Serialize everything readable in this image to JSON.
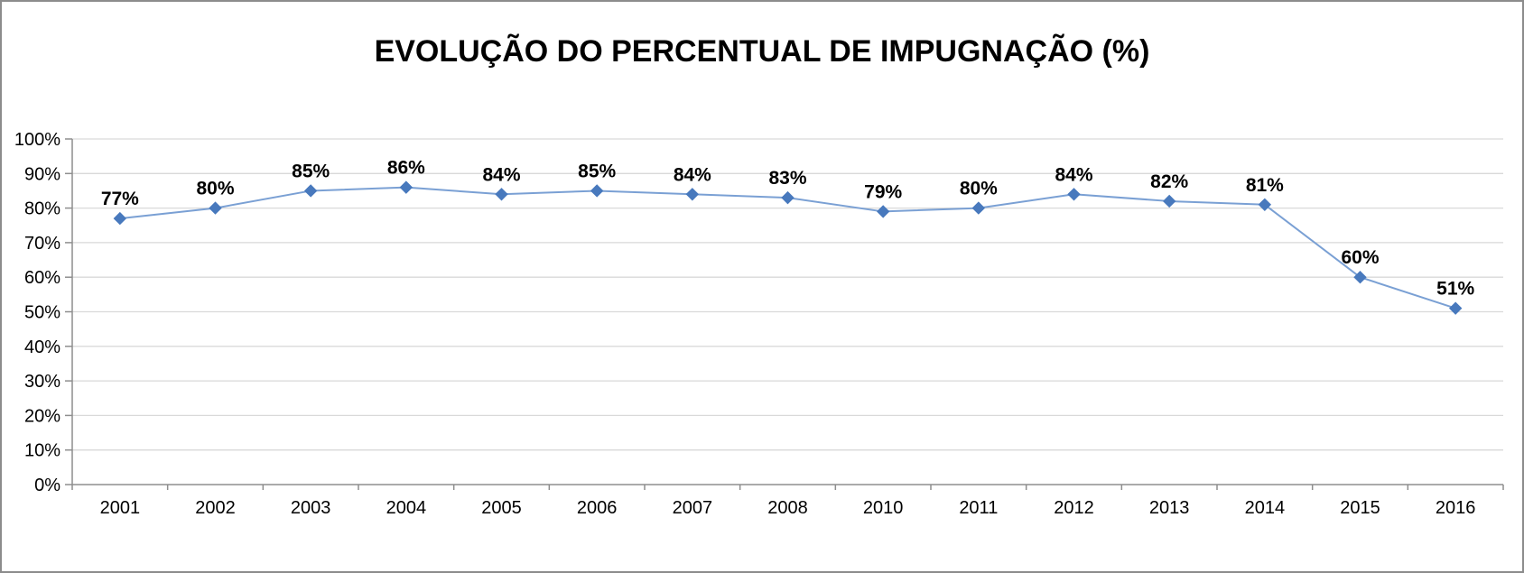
{
  "window": {
    "background": "#ffffff",
    "border_color": "#8c8c8c"
  },
  "chart_data": {
    "type": "line",
    "title": "EVOLUÇÃO DO PERCENTUAL DE IMPUGNAÇÃO (%)",
    "categories": [
      "2001",
      "2002",
      "2003",
      "2004",
      "2005",
      "2006",
      "2007",
      "2008",
      "2010",
      "2011",
      "2012",
      "2013",
      "2014",
      "2015",
      "2016"
    ],
    "values": [
      77,
      80,
      85,
      86,
      84,
      85,
      84,
      83,
      79,
      80,
      84,
      82,
      81,
      60,
      51
    ],
    "data_labels": [
      "77%",
      "80%",
      "85%",
      "86%",
      "84%",
      "85%",
      "84%",
      "83%",
      "79%",
      "80%",
      "84%",
      "82%",
      "81%",
      "60%",
      "51%"
    ],
    "xlabel": "",
    "ylabel": "",
    "ylim": [
      0,
      100
    ],
    "ytick_step": 10,
    "ytick_labels": [
      "0%",
      "10%",
      "20%",
      "30%",
      "40%",
      "50%",
      "60%",
      "70%",
      "80%",
      "90%",
      "100%"
    ],
    "grid": "horizontal",
    "legend": "none",
    "marker": "diamond",
    "colors": {
      "line": "#7aa0d4",
      "marker": "#4879bd",
      "gridline": "#d9d9d9",
      "axis": "#8e8e8e",
      "text": "#000000"
    }
  }
}
